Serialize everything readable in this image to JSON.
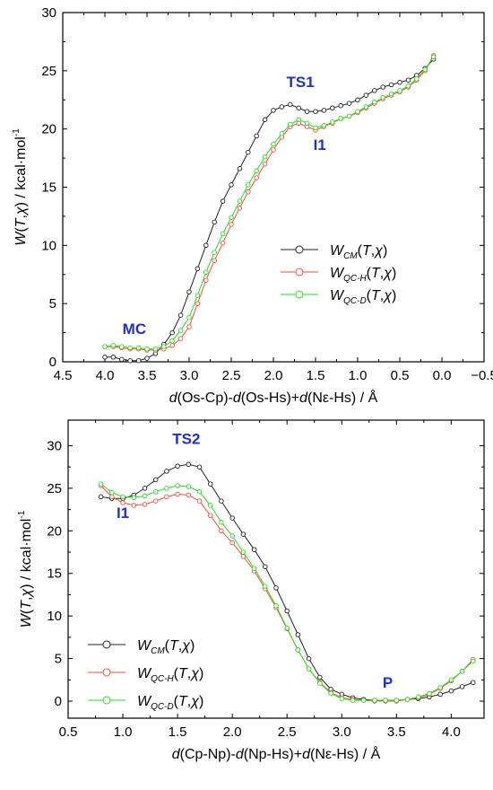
{
  "chart_data": [
    {
      "type": "line",
      "ylabel_parts": [
        "W",
        "(",
        "T",
        ",",
        "χ",
        ") / kcal·mol",
        "-1"
      ],
      "xlabel_parts": [
        [
          "d",
          "i"
        ],
        [
          "(Os-Cp)-",
          "n"
        ],
        [
          "d",
          "i"
        ],
        [
          "(Os-Hs)+",
          "n"
        ],
        [
          "d",
          "i"
        ],
        [
          "(Nε-Hs) / Å",
          "n"
        ]
      ],
      "xlim": [
        4.5,
        -0.5
      ],
      "ylim": [
        0,
        30
      ],
      "xticks": [
        4.5,
        4.0,
        3.5,
        3.0,
        2.5,
        2.0,
        1.5,
        1.0,
        0.5,
        0.0,
        -0.5
      ],
      "xtick_labels": [
        "4.5",
        "4.0",
        "3.5",
        "3.0",
        "2.5",
        "2.0",
        "1.5",
        "1.0",
        "0.5",
        "0.0",
        "−0.5"
      ],
      "yticks": [
        0,
        5,
        10,
        15,
        20,
        25,
        30
      ],
      "ytick_labels": [
        "0",
        "5",
        "10",
        "15",
        "20",
        "25",
        "30"
      ],
      "legend_position": "lower-right",
      "annotations": [
        {
          "text": "MC",
          "x": 3.65,
          "y": 2.4
        },
        {
          "text": "TS1",
          "x": 1.68,
          "y": 23.6
        },
        {
          "text": "I1",
          "x": 1.45,
          "y": 18.2
        }
      ],
      "series": [
        {
          "legend_parts": [
            [
              "W",
              "i"
            ],
            [
              "CM",
              "sub"
            ],
            [
              "(",
              "n"
            ],
            [
              "T",
              "i"
            ],
            [
              ",",
              "n"
            ],
            [
              "χ",
              "i"
            ],
            [
              ")",
              "n"
            ]
          ],
          "color": "#222222",
          "x": [
            4.0,
            3.9,
            3.8,
            3.7,
            3.6,
            3.5,
            3.4,
            3.3,
            3.2,
            3.1,
            3.0,
            2.9,
            2.8,
            2.7,
            2.6,
            2.5,
            2.4,
            2.3,
            2.2,
            2.1,
            2.0,
            1.9,
            1.8,
            1.7,
            1.6,
            1.5,
            1.4,
            1.3,
            1.2,
            1.1,
            1.0,
            0.9,
            0.8,
            0.7,
            0.6,
            0.5,
            0.4,
            0.3,
            0.2,
            0.1
          ],
          "y": [
            0.4,
            0.4,
            0.2,
            0.1,
            0.1,
            0.3,
            0.7,
            1.5,
            2.5,
            4.0,
            6.0,
            8.0,
            10.0,
            12.0,
            13.8,
            15.2,
            16.6,
            18.0,
            19.4,
            20.8,
            21.6,
            21.9,
            22.1,
            21.8,
            21.5,
            21.5,
            21.6,
            21.8,
            22.0,
            22.2,
            22.5,
            22.9,
            23.3,
            23.6,
            23.8,
            24.0,
            24.2,
            24.6,
            25.2,
            26.0
          ]
        },
        {
          "legend_parts": [
            [
              "W",
              "i"
            ],
            [
              "QC-H",
              "sub"
            ],
            [
              "(",
              "n"
            ],
            [
              "T",
              "i"
            ],
            [
              ",",
              "n"
            ],
            [
              "χ",
              "i"
            ],
            [
              ")",
              "n"
            ]
          ],
          "color": "#ff4a3d",
          "x": [
            4.0,
            3.9,
            3.8,
            3.7,
            3.6,
            3.5,
            3.4,
            3.3,
            3.2,
            3.1,
            3.0,
            2.9,
            2.8,
            2.7,
            2.6,
            2.5,
            2.4,
            2.3,
            2.2,
            2.1,
            2.0,
            1.9,
            1.8,
            1.7,
            1.6,
            1.5,
            1.4,
            1.3,
            1.2,
            1.1,
            1.0,
            0.9,
            0.8,
            0.7,
            0.6,
            0.5,
            0.4,
            0.3,
            0.2,
            0.1
          ],
          "y": [
            1.3,
            1.3,
            1.2,
            1.1,
            1.1,
            1.0,
            1.0,
            1.1,
            1.4,
            2.0,
            3.0,
            5.0,
            7.0,
            8.7,
            10.2,
            11.8,
            13.2,
            14.6,
            15.8,
            17.0,
            18.2,
            19.3,
            20.2,
            20.5,
            20.2,
            19.9,
            20.2,
            20.5,
            20.9,
            21.1,
            21.4,
            21.8,
            22.2,
            22.6,
            22.9,
            23.2,
            23.6,
            24.2,
            25.0,
            26.3
          ]
        },
        {
          "legend_parts": [
            [
              "W",
              "i"
            ],
            [
              "QC-D",
              "sub"
            ],
            [
              "(",
              "n"
            ],
            [
              "T",
              "i"
            ],
            [
              ",",
              "n"
            ],
            [
              "χ",
              "i"
            ],
            [
              ")",
              "n"
            ]
          ],
          "color": "#21e21b",
          "x": [
            4.0,
            3.9,
            3.8,
            3.7,
            3.6,
            3.5,
            3.4,
            3.3,
            3.2,
            3.1,
            3.0,
            2.9,
            2.8,
            2.7,
            2.6,
            2.5,
            2.4,
            2.3,
            2.2,
            2.1,
            2.0,
            1.9,
            1.8,
            1.7,
            1.6,
            1.5,
            1.4,
            1.3,
            1.2,
            1.1,
            1.0,
            0.9,
            0.8,
            0.7,
            0.6,
            0.5,
            0.4,
            0.3,
            0.2,
            0.1
          ],
          "y": [
            1.3,
            1.4,
            1.3,
            1.2,
            1.2,
            1.1,
            1.1,
            1.3,
            1.8,
            2.7,
            3.8,
            5.7,
            7.7,
            9.4,
            11.0,
            12.4,
            13.8,
            15.2,
            16.4,
            17.6,
            18.7,
            19.6,
            20.4,
            20.8,
            20.5,
            20.1,
            20.3,
            20.6,
            20.9,
            21.1,
            21.5,
            21.9,
            22.3,
            22.7,
            23.0,
            23.3,
            23.7,
            24.3,
            25.1,
            26.2
          ]
        }
      ]
    },
    {
      "type": "line",
      "ylabel_parts": [
        "W",
        "(",
        "T",
        ",",
        "χ",
        ") / kcal·mol",
        "-1"
      ],
      "xlabel_parts": [
        [
          "d",
          "i"
        ],
        [
          "(Cp-Np)-",
          "n"
        ],
        [
          "d",
          "i"
        ],
        [
          "(Np-Hs)+",
          "n"
        ],
        [
          "d",
          "i"
        ],
        [
          "(Nε-Hs) / Å",
          "n"
        ]
      ],
      "xlim": [
        0.5,
        4.3
      ],
      "ylim": [
        -2,
        33
      ],
      "xticks": [
        0.5,
        1.0,
        1.5,
        2.0,
        2.5,
        3.0,
        3.5,
        4.0
      ],
      "xtick_labels": [
        "0.5",
        "1.0",
        "1.5",
        "2.0",
        "2.5",
        "3.0",
        "3.5",
        "4.0"
      ],
      "yticks": [
        0,
        5,
        10,
        15,
        20,
        25,
        30
      ],
      "ytick_labels": [
        "0",
        "5",
        "10",
        "15",
        "20",
        "25",
        "30"
      ],
      "legend_position": "lower-left",
      "annotations": [
        {
          "text": "TS2",
          "x": 1.58,
          "y": 30.2
        },
        {
          "text": "I1",
          "x": 1.0,
          "y": 21.5
        },
        {
          "text": "P",
          "x": 3.42,
          "y": 1.6
        }
      ],
      "series": [
        {
          "legend_parts": [
            [
              "W",
              "i"
            ],
            [
              "CM",
              "sub"
            ],
            [
              "(",
              "n"
            ],
            [
              "T",
              "i"
            ],
            [
              ",",
              "n"
            ],
            [
              "χ",
              "i"
            ],
            [
              ")",
              "n"
            ]
          ],
          "color": "#222222",
          "x": [
            0.8,
            0.9,
            1.0,
            1.1,
            1.2,
            1.3,
            1.4,
            1.5,
            1.6,
            1.7,
            1.8,
            1.9,
            2.0,
            2.1,
            2.2,
            2.3,
            2.4,
            2.5,
            2.6,
            2.7,
            2.8,
            2.9,
            3.0,
            3.1,
            3.2,
            3.3,
            3.4,
            3.5,
            3.6,
            3.7,
            3.8,
            3.9,
            4.0,
            4.1,
            4.2
          ],
          "y": [
            24.0,
            23.8,
            23.8,
            24.2,
            25.0,
            26.0,
            27.0,
            27.6,
            27.8,
            27.5,
            25.5,
            23.5,
            21.5,
            19.6,
            17.8,
            15.8,
            13.3,
            10.6,
            7.8,
            5.0,
            2.8,
            1.4,
            0.8,
            0.4,
            0.2,
            0.1,
            0.1,
            0.1,
            0.2,
            0.3,
            0.5,
            0.8,
            1.2,
            1.7,
            2.2
          ]
        },
        {
          "legend_parts": [
            [
              "W",
              "i"
            ],
            [
              "QC-H",
              "sub"
            ],
            [
              "(",
              "n"
            ],
            [
              "T",
              "i"
            ],
            [
              ",",
              "n"
            ],
            [
              "χ",
              "i"
            ],
            [
              ")",
              "n"
            ]
          ],
          "color": "#ff4a3d",
          "x": [
            0.8,
            0.9,
            1.0,
            1.1,
            1.2,
            1.3,
            1.4,
            1.5,
            1.6,
            1.7,
            1.8,
            1.9,
            2.0,
            2.1,
            2.2,
            2.3,
            2.4,
            2.5,
            2.6,
            2.7,
            2.8,
            2.9,
            3.0,
            3.1,
            3.2,
            3.3,
            3.4,
            3.5,
            3.6,
            3.7,
            3.8,
            3.9,
            4.0,
            4.1,
            4.2
          ],
          "y": [
            25.3,
            24.0,
            23.3,
            23.0,
            23.1,
            23.5,
            24.0,
            24.3,
            24.2,
            23.5,
            21.8,
            20.0,
            18.6,
            17.0,
            15.3,
            13.2,
            11.0,
            8.5,
            6.0,
            3.8,
            2.2,
            1.0,
            0.4,
            0.2,
            0.1,
            0.0,
            0.0,
            0.0,
            0.2,
            0.4,
            0.8,
            1.5,
            2.4,
            3.5,
            4.9
          ]
        },
        {
          "legend_parts": [
            [
              "W",
              "i"
            ],
            [
              "QC-D",
              "sub"
            ],
            [
              "(",
              "n"
            ],
            [
              "T",
              "i"
            ],
            [
              ",",
              "n"
            ],
            [
              "χ",
              "i"
            ],
            [
              ")",
              "n"
            ]
          ],
          "color": "#21e21b",
          "x": [
            0.8,
            0.9,
            1.0,
            1.1,
            1.2,
            1.3,
            1.4,
            1.5,
            1.6,
            1.7,
            1.8,
            1.9,
            2.0,
            2.1,
            2.2,
            2.3,
            2.4,
            2.5,
            2.6,
            2.7,
            2.8,
            2.9,
            3.0,
            3.1,
            3.2,
            3.3,
            3.4,
            3.5,
            3.6,
            3.7,
            3.8,
            3.9,
            4.0,
            4.1,
            4.2
          ],
          "y": [
            25.5,
            24.5,
            24.0,
            23.9,
            24.1,
            24.6,
            25.0,
            25.3,
            25.2,
            24.6,
            23.0,
            21.0,
            19.4,
            17.5,
            15.6,
            13.5,
            11.2,
            8.6,
            6.0,
            3.8,
            2.1,
            0.9,
            0.3,
            0.1,
            0.1,
            0.1,
            0.1,
            0.1,
            0.2,
            0.5,
            0.9,
            1.6,
            2.5,
            3.5,
            4.7
          ]
        }
      ]
    }
  ]
}
